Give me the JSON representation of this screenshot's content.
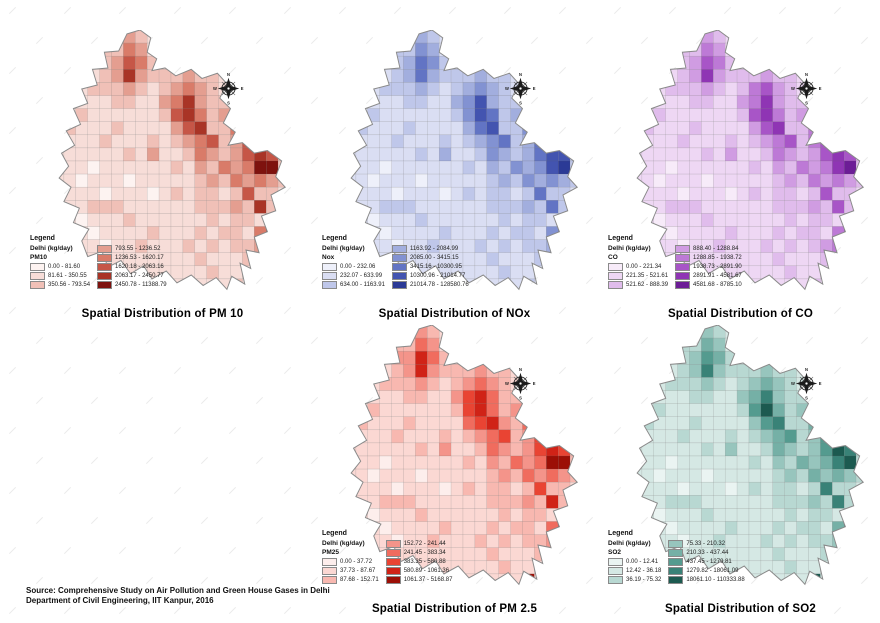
{
  "source": {
    "line1": "Source: Comprehensive Study on Air Pollution and Green House Gases in Delhi",
    "line2": "Department of Civil Engineering, IIT Kanpur, 2016"
  },
  "legend": {
    "title": "Legend",
    "subtitle": "Delhi (kg/day)"
  },
  "compass": {
    "north": "N",
    "south": "S",
    "east": "E",
    "west": "W"
  },
  "chart_data": [
    {
      "type": "heatmap",
      "id": "pm10",
      "title": "Spatial Distribution of PM 10",
      "region": "Delhi",
      "unit": "kg/day",
      "pollutant_label": "PM10",
      "ranges": [
        "0.00 - 81.60",
        "81.61 - 350.55",
        "350.56 - 793.54",
        "793.55 - 1236.52",
        "1236.53 - 1620.17",
        "1620.18 - 2063.16",
        "2063.17 - 2450.77",
        "2450.78 - 11388.79"
      ],
      "palette": [
        "#fdf3f1",
        "#f7ddd8",
        "#f0c0b7",
        "#e49e90",
        "#d97b69",
        "#c65647",
        "#a93426",
        "#7e120e"
      ],
      "grid": [
        "11111232111111111111",
        "11112243111111111111",
        "11122354211111111111",
        "11212363222322111111",
        "11122232123432121111",
        "11111221134632211211",
        "11211111125642321111",
        "12111211113562243211",
        "11112111212345235321",
        "11111121311243235652",
        "11101111112132434772",
        "11011101111123243432",
        "11110111012122125221",
        "11122211111122232622",
        "11011121111112122121",
        "11101111211121221462",
        "11110112111212122321",
        "11111111111121112252",
        "11111111111112111147",
        "11111111111111121111"
      ]
    },
    {
      "type": "heatmap",
      "id": "nox",
      "title": "Spatial Distribution of NOx",
      "region": "Delhi",
      "unit": "kg/day",
      "pollutant_label": "Nox",
      "ranges": [
        "0.00 - 232.06",
        "232.07 - 633.99",
        "634.00 - 1163.91",
        "1163.92 - 2084.99",
        "2085.00 - 3415.15",
        "3415.16 - 10300.95",
        "10300.96 - 21014.77",
        "21014.78 - 128580.76"
      ],
      "palette": [
        "#eef0fa",
        "#dadef3",
        "#bfc7ea",
        "#a2aede",
        "#8292d2",
        "#6274c4",
        "#4354b0",
        "#2b3a96"
      ],
      "grid": [
        "11111232111111111111",
        "11112243111111111111",
        "11122354211111111111",
        "11212353222322111111",
        "11122232123432121111",
        "11111221134632211211",
        "11211111124652321111",
        "12111211113562243211",
        "11112111212345235321",
        "11111121311243235662",
        "11101111112132434672",
        "11011101111123243432",
        "11110111012122125221",
        "11122211111122232522",
        "11011121111112122121",
        "11101111211121221452",
        "11110112111212122321",
        "11111111111121112252",
        "11111111111112111137",
        "11111111111111121111"
      ]
    },
    {
      "type": "heatmap",
      "id": "co",
      "title": "Spatial Distribution of CO",
      "region": "Delhi",
      "unit": "kg/day",
      "pollutant_label": "CO",
      "ranges": [
        "0.00 - 221.34",
        "221.35 - 521.61",
        "521.62 - 888.39",
        "888.40 - 1288.84",
        "1288.85 - 1938.72",
        "1938.73 - 2891.90",
        "2891.91 - 4581.67",
        "4581.68 - 8785.10"
      ],
      "palette": [
        "#f7ebf9",
        "#eed7f4",
        "#e0bcec",
        "#d09ce2",
        "#bd79d6",
        "#a855c7",
        "#8f35b4",
        "#6c1d96"
      ],
      "grid": [
        "11111232111111111111",
        "11112243111111111111",
        "11122354211111111111",
        "11212363222322111111",
        "11122232124532121111",
        "11111221134632211211",
        "11211111125642321111",
        "12111211113562243211",
        "11112111212345245321",
        "11111121311243235652",
        "11101111112132434672",
        "11011101111123243432",
        "11110111012122125221",
        "11122211111122232522",
        "11011121111112122121",
        "11101111211121221462",
        "11110112111212123421",
        "11111111111121112252",
        "11111111111112111147",
        "11111111111111121111"
      ]
    },
    {
      "type": "heatmap",
      "id": "pm25",
      "title": "Spatial Distribution of PM 2.5",
      "region": "Delhi",
      "unit": "kg/day",
      "pollutant_label": "PM25",
      "ranges": [
        "0.00 - 37.72",
        "37.73 - 87.67",
        "87.68 - 152.71",
        "152.72 - 241.44",
        "241.45 - 383.34",
        "383.35 - 580.88",
        "580.89 - 1061.36",
        "1061.37 - 5168.87"
      ],
      "palette": [
        "#fdeeec",
        "#fbd8d3",
        "#f8b8b0",
        "#f4948a",
        "#f06c5e",
        "#e94433",
        "#d02317",
        "#9c0f06"
      ],
      "grid": [
        "11111232111111111111",
        "11112243111111111111",
        "11123364211111111111",
        "11212363222322111111",
        "11122232123432121111",
        "11111221135642211211",
        "11211111125642321111",
        "12111211114563243211",
        "11112111212345235321",
        "11111121311243235652",
        "11101111112132434772",
        "11011101111123243432",
        "11110111012122125221",
        "11122211111122232622",
        "11011121111112122121",
        "11101111211121221462",
        "11110112111212122321",
        "11111111111121112252",
        "11111111111112111157",
        "11111111111111171111"
      ]
    },
    {
      "type": "heatmap",
      "id": "so2",
      "title": "Spatial Distribution of SO2",
      "region": "Delhi",
      "unit": "kg/day",
      "pollutant_label": "SO2",
      "ranges": [
        "0.00 - 12.41",
        "12.42 - 36.18",
        "36.19 - 75.32",
        "75.33 - 210.32",
        "210.33 - 437.44",
        "437.45 - 1279.81",
        "1279.82 - 18061.09",
        "18061.10 - 110333.88"
      ],
      "palette": [
        "#eaf4f2",
        "#d5e8e4",
        "#b8d8d2",
        "#97c5bd",
        "#75b0a6",
        "#549b8f",
        "#398277",
        "#1c5a50"
      ],
      "grid": [
        "11111232111111111111",
        "11112243111111111111",
        "11122354211111111111",
        "11212363222322111111",
        "11122232123432121111",
        "11111221134632211211",
        "11211111125742321111",
        "12111211113562243211",
        "11112111212345235321",
        "11111121311243235762",
        "11101111112132434672",
        "11011101111123243432",
        "11110111012122126221",
        "11122211111122232622",
        "11011121111112122121",
        "11101111211121221462",
        "11110112111212122321",
        "11111111111121112252",
        "11111111111112111167",
        "11111111111111171111"
      ]
    }
  ]
}
